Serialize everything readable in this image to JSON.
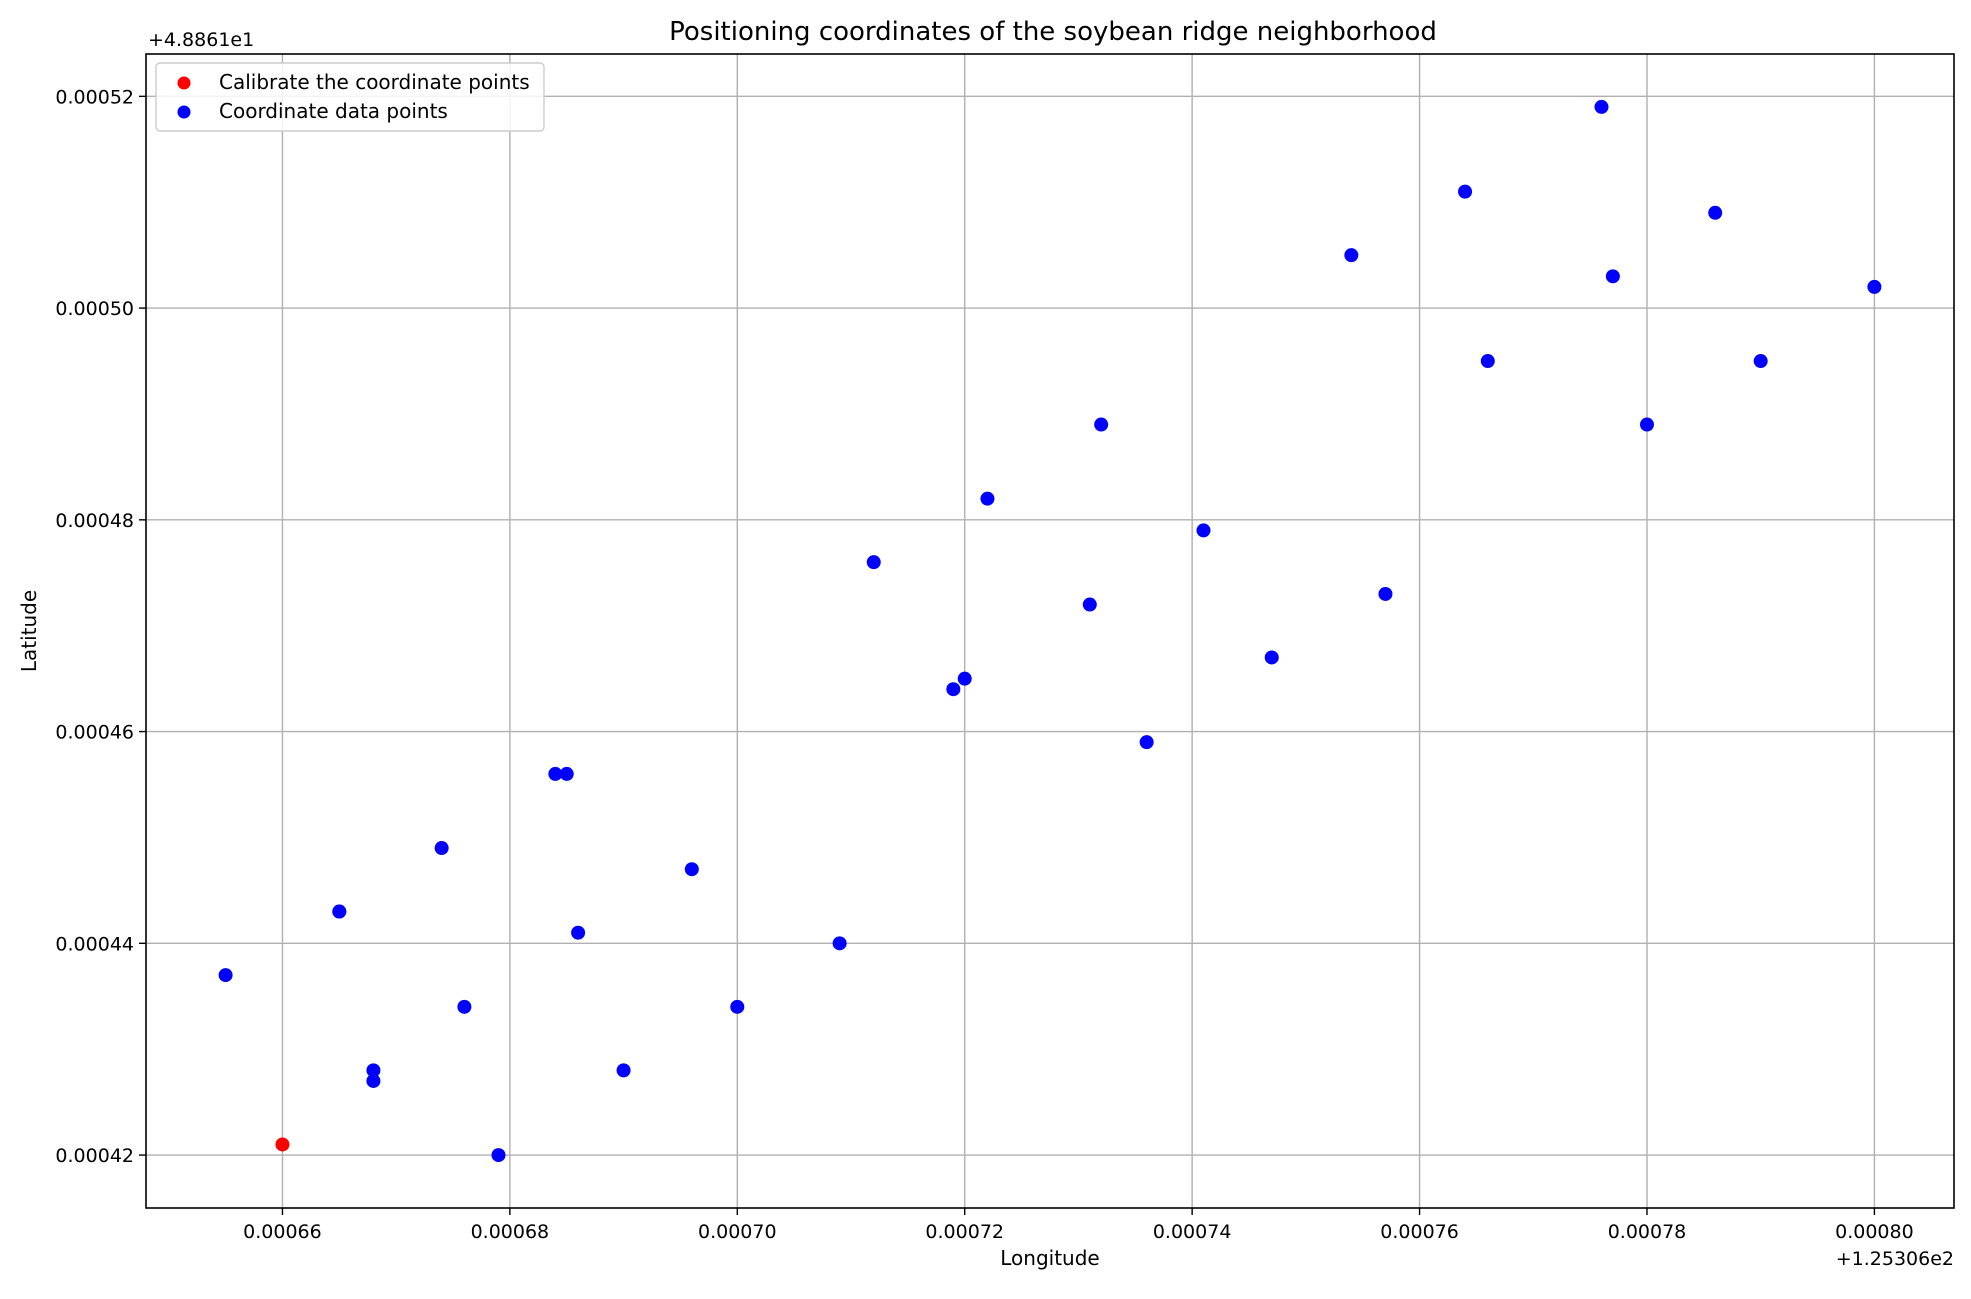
{
  "chart_data": {
    "type": "scatter",
    "title": "Positioning coordinates of the soybean ridge neighborhood",
    "xlabel": "Longitude",
    "ylabel": "Latitude",
    "x_offset_label": "+1.25306e2",
    "y_offset_label": "+4.8861e1",
    "xlim": [
      0.000648,
      0.000807
    ],
    "ylim": [
      0.000415,
      0.000524
    ],
    "x_ticks": [
      0.00066,
      0.00068,
      0.0007,
      0.00072,
      0.00074,
      0.00076,
      0.00078,
      0.0008
    ],
    "x_tick_labels": [
      "0.00066",
      "0.00068",
      "0.00070",
      "0.00072",
      "0.00074",
      "0.00076",
      "0.00078",
      "0.00080"
    ],
    "y_ticks": [
      0.00042,
      0.00044,
      0.00046,
      0.00048,
      0.0005,
      0.00052
    ],
    "y_tick_labels": [
      "0.00042",
      "0.00044",
      "0.00046",
      "0.00048",
      "0.00050",
      "0.00052"
    ],
    "grid": true,
    "legend_position": "top-left",
    "series": [
      {
        "name": "Calibrate the coordinate points",
        "color": "#ff0000",
        "points": [
          [
            0.00066,
            0.000421
          ]
        ]
      },
      {
        "name": "Coordinate data points",
        "color": "#0000ff",
        "points": [
          [
            0.000655,
            0.000437
          ],
          [
            0.000665,
            0.000443
          ],
          [
            0.000665,
            0.000443
          ],
          [
            0.000668,
            0.000428
          ],
          [
            0.000668,
            0.000427
          ],
          [
            0.000674,
            0.000449
          ],
          [
            0.000676,
            0.000434
          ],
          [
            0.000679,
            0.00042
          ],
          [
            0.000684,
            0.000456
          ],
          [
            0.000685,
            0.000456
          ],
          [
            0.000686,
            0.000441
          ],
          [
            0.00069,
            0.000428
          ],
          [
            0.000696,
            0.000447
          ],
          [
            0.0007,
            0.000434
          ],
          [
            0.000709,
            0.00044
          ],
          [
            0.000712,
            0.000476
          ],
          [
            0.000719,
            0.000464
          ],
          [
            0.00072,
            0.000465
          ],
          [
            0.000722,
            0.000482
          ],
          [
            0.000731,
            0.000472
          ],
          [
            0.000732,
            0.000489
          ],
          [
            0.000736,
            0.000459
          ],
          [
            0.000741,
            0.000479
          ],
          [
            0.000747,
            0.000467
          ],
          [
            0.000754,
            0.000505
          ],
          [
            0.000757,
            0.000473
          ],
          [
            0.000764,
            0.000511
          ],
          [
            0.000766,
            0.000495
          ],
          [
            0.000776,
            0.000519
          ],
          [
            0.000777,
            0.000503
          ],
          [
            0.00078,
            0.000489
          ],
          [
            0.000786,
            0.000509
          ],
          [
            0.00079,
            0.000495
          ],
          [
            0.0008,
            0.000502
          ]
        ]
      }
    ]
  }
}
